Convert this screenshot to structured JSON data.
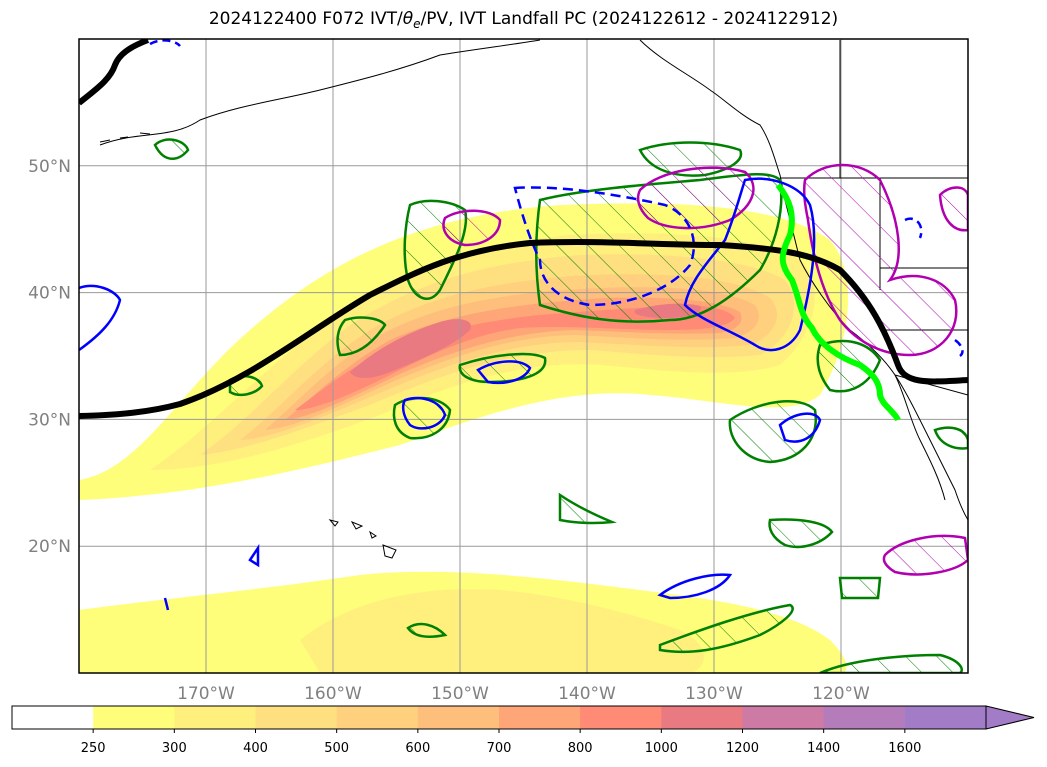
{
  "chart_data": {
    "type": "map",
    "title_parts": {
      "prefix": "2024122400 F072 IVT/",
      "theta": "θ",
      "sub": "e",
      "suffix": "/PV, IVT Landfall PC (2024122612 - 2024122912)"
    },
    "lon_ticks": [
      "170°W",
      "160°W",
      "150°W",
      "140°W",
      "130°W",
      "120°W"
    ],
    "lat_ticks": [
      "50°N",
      "40°N",
      "30°N",
      "20°N"
    ],
    "lon_values": [
      -170,
      -160,
      -150,
      -140,
      -130,
      -120
    ],
    "lat_values": [
      50,
      40,
      30,
      20
    ],
    "extent": {
      "lon": [
        -180,
        -110
      ],
      "lat": [
        10,
        60
      ]
    },
    "grid": true,
    "colorbar": {
      "levels": [
        250,
        300,
        400,
        500,
        600,
        700,
        800,
        1000,
        1200,
        1400,
        1600
      ],
      "labels": [
        "250",
        "300",
        "400",
        "500",
        "600",
        "700",
        "800",
        "1000",
        "1200",
        "1400",
        "1600"
      ],
      "colors": [
        "#ffffff",
        "#fffe7a",
        "#fff07e",
        "#ffe080",
        "#ffd07e",
        "#ffbf7c",
        "#ffa678",
        "#ff8a76",
        "#e97a82",
        "#cd7aa4",
        "#b57cbc",
        "#a27cc6"
      ],
      "extend": "max"
    },
    "colors": {
      "ivt_contour_line": "#000000",
      "landfall_line": "#00ff00",
      "theta_e": "#008000",
      "pv_positive": "#b000b0",
      "pv_negative": "#0000ff",
      "coastline": "#000000"
    }
  }
}
